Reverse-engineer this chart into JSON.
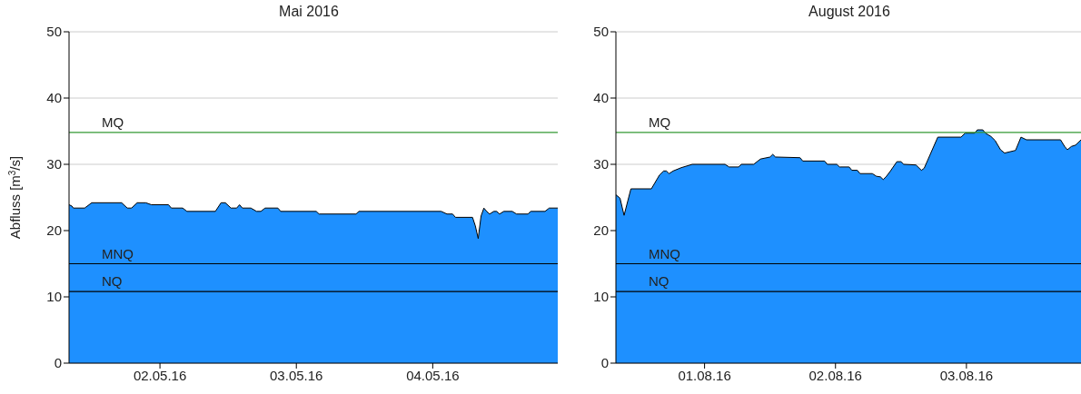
{
  "chart_data": [
    {
      "type": "area",
      "title": "Mai 2016",
      "ylabel": "Abfluss [m$^{3}$/s]",
      "x": [
        "2016-05-01T08:00",
        "2016-05-01T08:30",
        "2016-05-01T08:45",
        "2016-05-01T10:45",
        "2016-05-01T12:00",
        "2016-05-01T17:15",
        "2016-05-01T18:15",
        "2016-05-01T19:00",
        "2016-05-01T20:00",
        "2016-05-01T21:30",
        "2016-05-01T22:30",
        "2016-05-02T01:30",
        "2016-05-02T02:00",
        "2016-05-02T04:00",
        "2016-05-02T04:45",
        "2016-05-02T09:45",
        "2016-05-02T10:45",
        "2016-05-02T11:30",
        "2016-05-02T12:30",
        "2016-05-02T13:30",
        "2016-05-02T14:00",
        "2016-05-02T14:30",
        "2016-05-02T16:00",
        "2016-05-02T17:00",
        "2016-05-02T17:45",
        "2016-05-02T18:30",
        "2016-05-02T20:45",
        "2016-05-02T21:15",
        "2016-05-03T03:30",
        "2016-05-03T04:00",
        "2016-05-03T10:30",
        "2016-05-03T11:00",
        "2016-05-04T01:30",
        "2016-05-04T02:30",
        "2016-05-04T03:30",
        "2016-05-04T04:00",
        "2016-05-04T07:00",
        "2016-05-04T07:30",
        "2016-05-04T08:00",
        "2016-05-04T08:30",
        "2016-05-04T09:00",
        "2016-05-04T09:30",
        "2016-05-04T10:00",
        "2016-05-04T10:45",
        "2016-05-04T11:15",
        "2016-05-04T11:45",
        "2016-05-04T12:30",
        "2016-05-04T14:00",
        "2016-05-04T14:45",
        "2016-05-04T16:45",
        "2016-05-04T17:15",
        "2016-05-04T19:45",
        "2016-05-04T20:30",
        "2016-05-04T22:00"
      ],
      "values": [
        23.9,
        23.7,
        23.4,
        23.4,
        24.2,
        24.2,
        23.4,
        23.4,
        24.2,
        24.2,
        23.9,
        23.9,
        23.4,
        23.4,
        22.9,
        22.9,
        24.2,
        24.2,
        23.4,
        23.4,
        23.9,
        23.4,
        23.4,
        22.9,
        22.9,
        23.4,
        23.4,
        22.9,
        22.9,
        22.5,
        22.5,
        22.9,
        22.9,
        22.5,
        22.5,
        22.0,
        22.0,
        20.7,
        18.8,
        22.2,
        23.4,
        22.9,
        22.5,
        22.9,
        22.9,
        22.5,
        22.9,
        22.9,
        22.5,
        22.5,
        22.9,
        22.9,
        23.4,
        23.4
      ],
      "color": "#1e90ff",
      "xlim": [
        "2016-05-01T08:00",
        "2016-05-04T22:00"
      ],
      "xticks": [
        {
          "value": "2016-05-02",
          "label": "02.05.16"
        },
        {
          "value": "2016-05-03",
          "label": "03.05.16"
        },
        {
          "value": "2016-05-04",
          "label": "04.05.16"
        }
      ],
      "ylim": [
        0,
        50
      ],
      "yticks": [
        0,
        10,
        20,
        30,
        40,
        50
      ],
      "grid": "y",
      "ref_lines": [
        {
          "axis": "y",
          "value": 34.8,
          "label": "MQ",
          "color": "#339933"
        },
        {
          "axis": "y",
          "value": 15,
          "label": "MNQ",
          "color": "#000000"
        },
        {
          "axis": "y",
          "value": 10.8,
          "label": "NQ",
          "color": "#000000"
        }
      ]
    },
    {
      "type": "area",
      "title": "August 2016",
      "x": [
        "2016-07-31T07:45",
        "2016-07-31T08:30",
        "2016-07-31T09:15",
        "2016-07-31T10:30",
        "2016-07-31T14:15",
        "2016-07-31T15:45",
        "2016-07-31T16:30",
        "2016-07-31T17:00",
        "2016-07-31T17:30",
        "2016-07-31T18:15",
        "2016-07-31T19:45",
        "2016-07-31T21:45",
        "2016-08-01T03:45",
        "2016-08-01T04:30",
        "2016-08-01T06:15",
        "2016-08-01T06:45",
        "2016-08-01T09:00",
        "2016-08-01T10:15",
        "2016-08-01T12:00",
        "2016-08-01T12:30",
        "2016-08-01T13:00",
        "2016-08-01T17:30",
        "2016-08-01T18:00",
        "2016-08-01T22:00",
        "2016-08-01T22:30",
        "2016-08-02T00:15",
        "2016-08-02T00:45",
        "2016-08-02T02:30",
        "2016-08-02T03:00",
        "2016-08-02T04:00",
        "2016-08-02T04:30",
        "2016-08-02T06:45",
        "2016-08-02T07:30",
        "2016-08-02T08:15",
        "2016-08-02T08:45",
        "2016-08-02T09:15",
        "2016-08-02T10:00",
        "2016-08-02T11:15",
        "2016-08-02T12:00",
        "2016-08-02T12:30",
        "2016-08-02T14:45",
        "2016-08-02T15:45",
        "2016-08-02T16:15",
        "2016-08-02T18:45",
        "2016-08-02T23:00",
        "2016-08-02T23:45",
        "2016-08-03T01:30",
        "2016-08-03T02:00",
        "2016-08-03T03:00",
        "2016-08-03T03:30",
        "2016-08-03T04:30",
        "2016-08-03T05:15",
        "2016-08-03T06:15",
        "2016-08-03T07:00",
        "2016-08-03T09:00",
        "2016-08-03T10:00",
        "2016-08-03T11:00",
        "2016-08-03T17:15",
        "2016-08-03T18:00",
        "2016-08-03T18:30",
        "2016-08-03T19:15",
        "2016-08-03T20:00",
        "2016-08-03T21:00"
      ],
      "values": [
        25.4,
        24.9,
        22.3,
        26.3,
        26.3,
        28.4,
        29.0,
        29.0,
        28.6,
        29.0,
        29.5,
        30.0,
        30.0,
        29.6,
        29.6,
        30.0,
        30.0,
        30.8,
        31.1,
        31.5,
        31.1,
        31.0,
        30.5,
        30.5,
        30.0,
        30.0,
        29.6,
        29.6,
        29.1,
        29.1,
        28.6,
        28.6,
        28.2,
        28.1,
        27.7,
        28.1,
        28.9,
        30.4,
        30.4,
        30.0,
        29.9,
        29.1,
        29.4,
        34.1,
        34.1,
        34.7,
        34.7,
        35.2,
        35.2,
        34.7,
        34.2,
        33.6,
        32.2,
        31.7,
        32.1,
        34.1,
        33.7,
        33.7,
        32.7,
        32.2,
        32.7,
        32.9,
        33.7
      ],
      "color": "#1e90ff",
      "xlim": [
        "2016-07-31T07:45",
        "2016-08-03T21:00"
      ],
      "xticks": [
        {
          "value": "2016-08-01",
          "label": "01.08.16"
        },
        {
          "value": "2016-08-02",
          "label": "02.08.16"
        },
        {
          "value": "2016-08-03",
          "label": "03.08.16"
        }
      ],
      "ylim": [
        0,
        50
      ],
      "yticks": [
        0,
        10,
        20,
        30,
        40,
        50
      ],
      "grid": "y",
      "ref_lines": [
        {
          "axis": "y",
          "value": 34.8,
          "label": "MQ",
          "color": "#339933"
        },
        {
          "axis": "y",
          "value": 15,
          "label": "MNQ",
          "color": "#000000"
        },
        {
          "axis": "y",
          "value": 10.8,
          "label": "NQ",
          "color": "#000000"
        }
      ]
    }
  ]
}
